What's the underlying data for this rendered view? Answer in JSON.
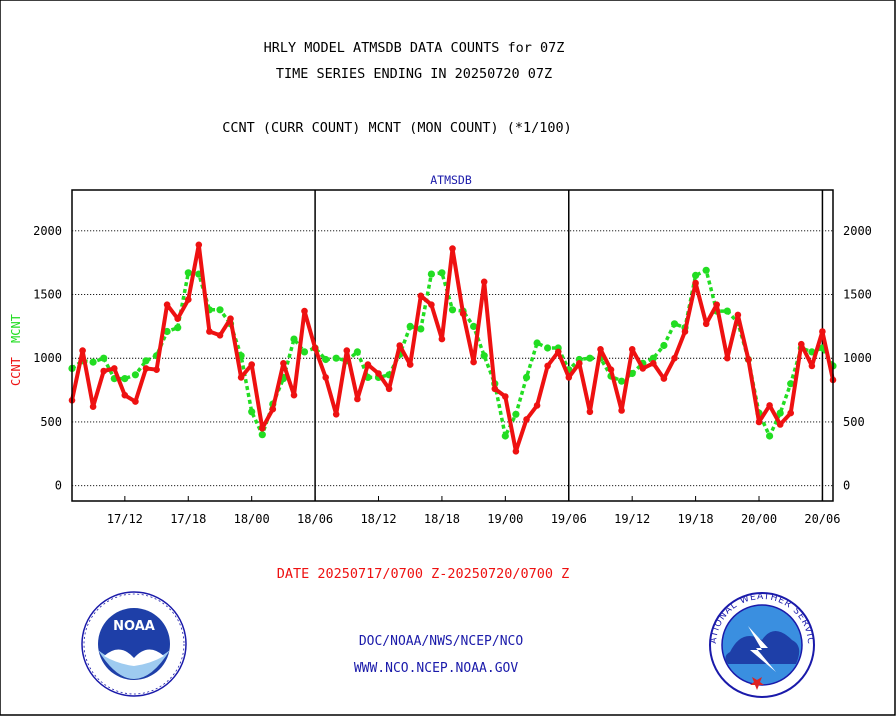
{
  "header": {
    "line1": "HRLY MODEL ATMSDB DATA COUNTS for 07Z",
    "line2": "TIME SERIES ENDING IN 20250720 07Z",
    "line3": "CCNT (CURR COUNT) MCNT (MON COUNT) (*1/100)"
  },
  "footer": {
    "date_range": "DATE 20250717/0700 Z-20250720/0700 Z",
    "org_line": "DOC/NOAA/NWS/NCEP/NCO",
    "url_line": "WWW.NCO.NCEP.NOAA.GOV"
  },
  "logos": {
    "noaa": "NOAA",
    "nws_ring": "NATIONAL WEATHER SERVICE"
  },
  "colors": {
    "ccnt": "#ee1111",
    "mcnt": "#22dd22",
    "title_blue": "#1a1aaa",
    "text": "#000000"
  },
  "chart_data": {
    "type": "line",
    "title": "ATMSDB",
    "ylabel_ccnt": "CCNT",
    "ylabel_mcnt": "MCNT",
    "ylim": [
      -120,
      2320
    ],
    "yticks": [
      0,
      500,
      1000,
      1500,
      2000
    ],
    "xlim": [
      0,
      72
    ],
    "xticks": [
      {
        "x": 5,
        "label": "17/12"
      },
      {
        "x": 11,
        "label": "17/18"
      },
      {
        "x": 17,
        "label": "18/00"
      },
      {
        "x": 23,
        "label": "18/06"
      },
      {
        "x": 29,
        "label": "18/12"
      },
      {
        "x": 35,
        "label": "18/18"
      },
      {
        "x": 41,
        "label": "19/00"
      },
      {
        "x": 47,
        "label": "19/06"
      },
      {
        "x": 53,
        "label": "19/12"
      },
      {
        "x": 59,
        "label": "19/18"
      },
      {
        "x": 65,
        "label": "20/00"
      },
      {
        "x": 71,
        "label": "20/06"
      }
    ],
    "day_boundaries": [
      23,
      47,
      71
    ],
    "grid": true,
    "series": [
      {
        "name": "CCNT",
        "values": [
          670,
          1060,
          620,
          900,
          920,
          710,
          660,
          920,
          910,
          1420,
          1310,
          1460,
          1890,
          1210,
          1180,
          1310,
          850,
          950,
          450,
          600,
          960,
          710,
          1370,
          1080,
          850,
          560,
          1060,
          680,
          950,
          880,
          760,
          1100,
          950,
          1490,
          1420,
          1150,
          1860,
          1350,
          970,
          1600,
          760,
          700,
          270,
          520,
          630,
          940,
          1050,
          850,
          960,
          580,
          1070,
          910,
          590,
          1070,
          920,
          960,
          840,
          1000,
          1210,
          1590,
          1270,
          1420,
          1000,
          1340,
          990,
          500,
          630,
          480,
          570,
          1110,
          940,
          1210,
          830
        ]
      },
      {
        "name": "MCNT",
        "values": [
          920,
          980,
          970,
          1000,
          840,
          840,
          870,
          980,
          1020,
          1210,
          1240,
          1670,
          1660,
          1380,
          1380,
          1270,
          1020,
          580,
          400,
          640,
          840,
          1150,
          1050,
          1080,
          990,
          1000,
          980,
          1050,
          850,
          850,
          870,
          1030,
          1250,
          1230,
          1660,
          1670,
          1380,
          1370,
          1250,
          1020,
          800,
          390,
          560,
          850,
          1120,
          1080,
          1080,
          910,
          990,
          1000,
          1000,
          860,
          820,
          880,
          960,
          1000,
          1100,
          1270,
          1240,
          1650,
          1690,
          1370,
          1370,
          1280,
          990,
          570,
          390,
          570,
          800,
          1080,
          1050,
          1080,
          940
        ]
      }
    ]
  }
}
